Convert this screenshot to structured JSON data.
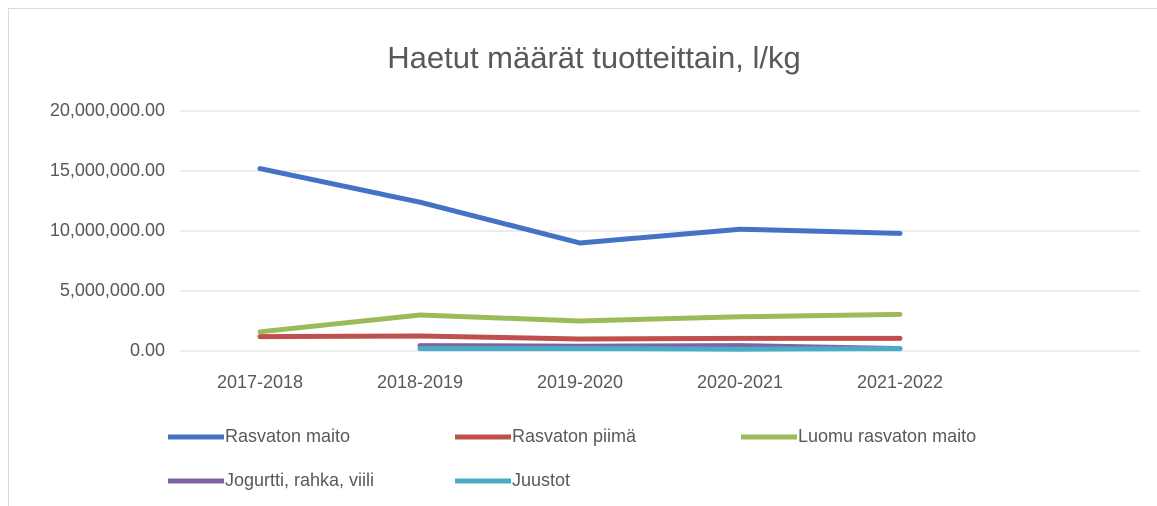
{
  "chart_data": {
    "type": "line",
    "title": "Haetut määrät tuotteittain, l/kg",
    "categories": [
      "2017-2018",
      "2018-2019",
      "2019-2020",
      "2020-2021",
      "2021-2022",
      null
    ],
    "series": [
      {
        "name": "Rasvaton maito",
        "color": "#4472c4",
        "values": [
          15200000,
          12400000,
          9000000,
          10150000,
          9800000,
          null
        ]
      },
      {
        "name": "Rasvaton piimä",
        "color": "#c0504d",
        "values": [
          1200000,
          1250000,
          1000000,
          1050000,
          1050000,
          null
        ]
      },
      {
        "name": "Luomu rasvaton maito",
        "color": "#9bbb59",
        "values": [
          1600000,
          3000000,
          2500000,
          2850000,
          3050000,
          null
        ]
      },
      {
        "name": "Jogurtti, rahka, viili",
        "color": "#8064a2",
        "values": [
          null,
          450000,
          400000,
          450000,
          200000,
          null
        ]
      },
      {
        "name": "Juustot",
        "color": "#4bacc6",
        "values": [
          null,
          200000,
          200000,
          150000,
          200000,
          null
        ]
      }
    ],
    "ylim": [
      0,
      20000000
    ],
    "yticks": [
      {
        "value": 0,
        "label": "0.00"
      },
      {
        "value": 5000000,
        "label": "5,000,000.00"
      },
      {
        "value": 10000000,
        "label": "10,000,000.00"
      },
      {
        "value": 15000000,
        "label": "15,000,000.00"
      },
      {
        "value": 20000000,
        "label": "20,000,000.00"
      }
    ],
    "grid": true,
    "legend": "bottom"
  }
}
